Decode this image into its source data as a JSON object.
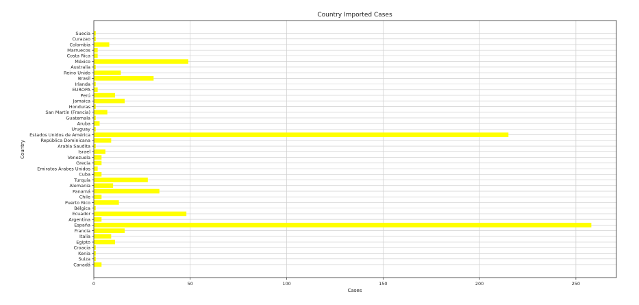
{
  "chart_data": {
    "type": "bar",
    "orientation": "horizontal",
    "title": "Country Imported Cases",
    "xlabel": "Cases",
    "ylabel": "Country",
    "xlim": [
      0,
      271
    ],
    "xticks": [
      0,
      50,
      100,
      150,
      200,
      250
    ],
    "grid": true,
    "bar_color": "#ffff00",
    "categories": [
      "Suecia",
      "Curazao",
      "Colombia",
      "Marruecos",
      "Costa Rica",
      "México",
      "Australia",
      "Reino Unido",
      "Brasil",
      "Irlanda",
      "EUROPA",
      "Perú",
      "Jamaica",
      "Honduras",
      "San Martín (Francia)",
      "Guatemala",
      "Aruba",
      "Uruguay",
      "Estados Unidos de América",
      "República Dominicana",
      "Arabia Saudita",
      "Israel",
      "Venezuela",
      "Grecia",
      "Emiratos Árabes Unidos",
      "Cuba",
      "Turquía",
      "Alemania",
      "Panamá",
      "Chile",
      "Puerto Rico",
      "Bélgica",
      "Ecuador",
      "Argentina",
      "España",
      "Francia",
      "Italia",
      "Egipto",
      "Croacia",
      "Kenia",
      "Suiza",
      "Canadá"
    ],
    "values": [
      1,
      1,
      8,
      2,
      2,
      49,
      1,
      14,
      31,
      1,
      2,
      11,
      16,
      1,
      7,
      1,
      3,
      1,
      215,
      9,
      1,
      6,
      4,
      4,
      2,
      4,
      28,
      10,
      34,
      4,
      13,
      1,
      48,
      4,
      258,
      16,
      9,
      11,
      1,
      1,
      1,
      4
    ]
  }
}
